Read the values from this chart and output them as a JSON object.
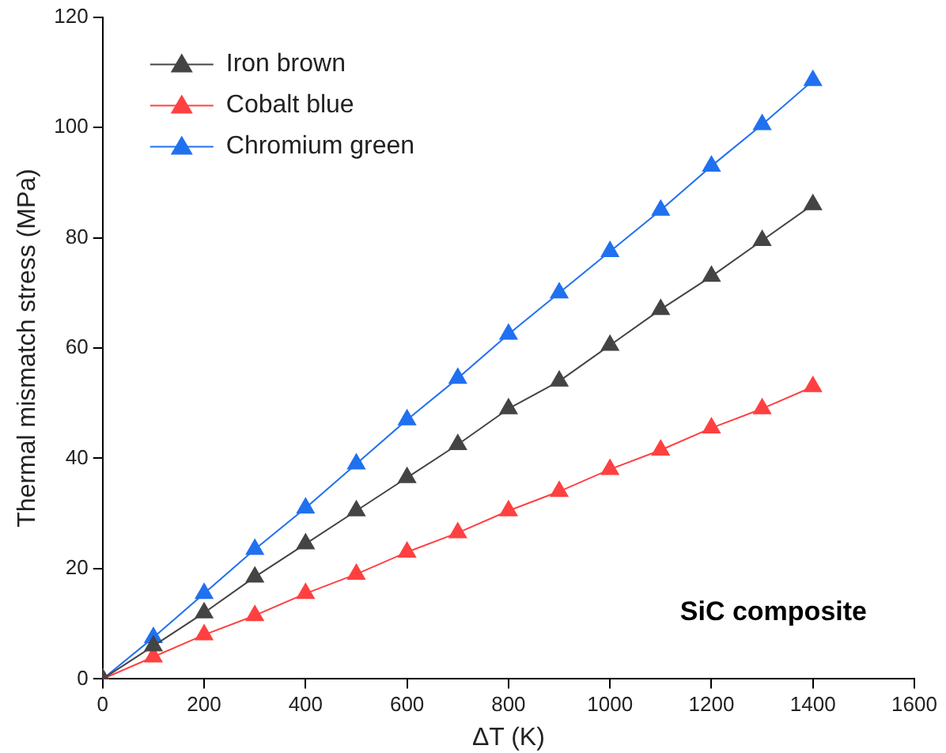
{
  "chart_data": {
    "type": "line",
    "xlabel": "ΔT (K)",
    "ylabel": "Thermal mismatch stress (MPa)",
    "x": [
      0,
      100,
      200,
      300,
      400,
      500,
      600,
      700,
      800,
      900,
      1000,
      1100,
      1200,
      1300,
      1400
    ],
    "series": [
      {
        "name": "Iron brown",
        "color": "#444444",
        "values": [
          0,
          6,
          12,
          18.5,
          24.5,
          30.5,
          36.5,
          42.5,
          49,
          54,
          60.5,
          67,
          73,
          79.5,
          86
        ]
      },
      {
        "name": "Cobalt blue",
        "color": "#ff4040",
        "values": [
          0,
          4,
          8,
          11.5,
          15.5,
          19,
          23,
          26.5,
          30.5,
          34,
          38,
          41.5,
          45.5,
          49,
          53
        ]
      },
      {
        "name": "Chromium green",
        "color": "#2070f0",
        "values": [
          0,
          7.5,
          15.5,
          23.5,
          31,
          39,
          47,
          54.5,
          62.5,
          70,
          77.5,
          85,
          93,
          100.5,
          108.5
        ]
      }
    ],
    "xlim": [
      0,
      1600
    ],
    "xticks": [
      0,
      200,
      400,
      600,
      800,
      1000,
      1200,
      1400,
      1600
    ],
    "ylim": [
      0,
      120
    ],
    "yticks": [
      0,
      20,
      40,
      60,
      80,
      100,
      120
    ],
    "grid": false,
    "legend": "top left",
    "marker": "triangle",
    "line_style": "solid",
    "annotations": [
      "SiC composite"
    ]
  }
}
